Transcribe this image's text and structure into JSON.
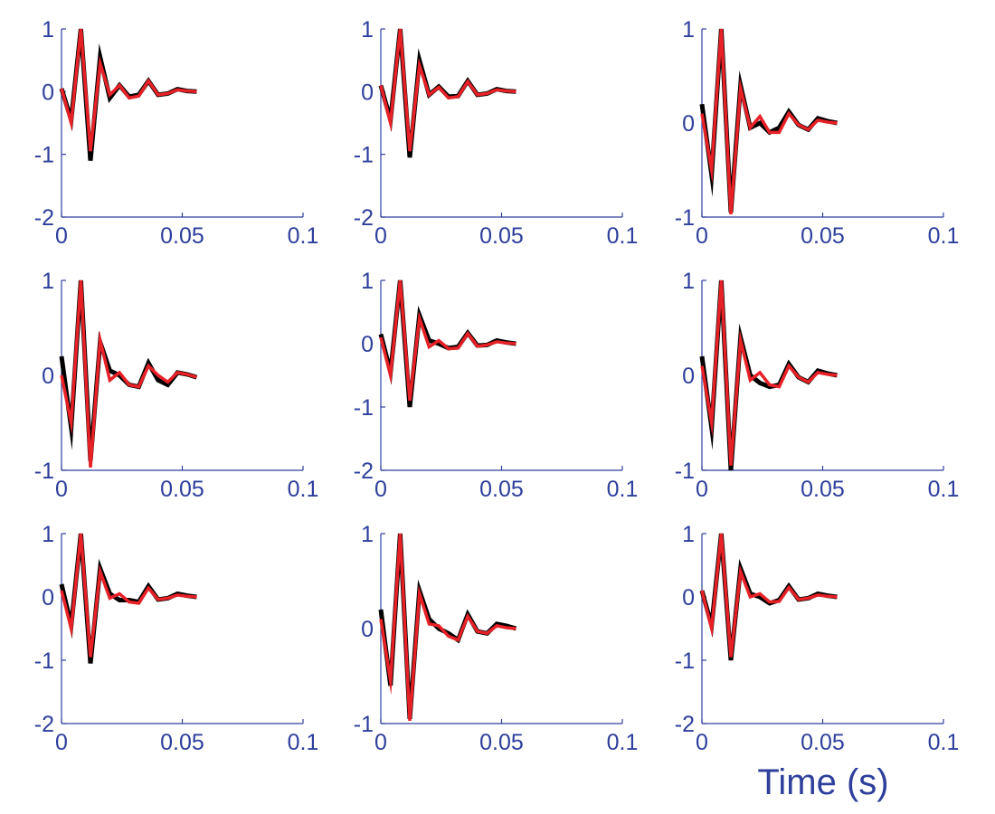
{
  "figure": {
    "axis_color": "#2e3f9c",
    "xlabel": "Time (s)"
  },
  "chart_data": [
    {
      "type": "line",
      "panel": "row1-col1",
      "xlim": [
        0,
        0.1
      ],
      "ylim": [
        -2,
        1
      ],
      "xticks": [
        0,
        0.05,
        0.1
      ],
      "xtick_labels": [
        "0",
        "0.05",
        "0.1"
      ],
      "yticks": [
        -2,
        -1,
        0,
        1
      ],
      "ytick_labels": [
        "-2",
        "-1",
        "0",
        "1"
      ],
      "series": [
        {
          "color": "#000000",
          "x": [
            0,
            0.004,
            0.008,
            0.012,
            0.016,
            0.02,
            0.024,
            0.028,
            0.032,
            0.036,
            0.04,
            0.044,
            0.048,
            0.052,
            0.056
          ],
          "y": [
            0.05,
            -0.45,
            1.0,
            -1.1,
            0.55,
            -0.1,
            0.1,
            -0.08,
            -0.05,
            0.17,
            -0.05,
            -0.03,
            0.04,
            0.01,
            0.0
          ]
        },
        {
          "color": "#e82127",
          "x": [
            0,
            0.004,
            0.008,
            0.012,
            0.016,
            0.02,
            0.024,
            0.028,
            0.032,
            0.036,
            0.04,
            0.044,
            0.048,
            0.052,
            0.056
          ],
          "y": [
            0.05,
            -0.5,
            1.0,
            -0.95,
            0.45,
            -0.05,
            0.1,
            -0.1,
            -0.07,
            0.17,
            -0.05,
            -0.03,
            0.03,
            0.01,
            0.0
          ]
        }
      ]
    },
    {
      "type": "line",
      "panel": "row1-col2",
      "xlim": [
        0,
        0.1
      ],
      "ylim": [
        -2,
        1
      ],
      "xticks": [
        0,
        0.05,
        0.1
      ],
      "xtick_labels": [
        "0",
        "0.05",
        "0.1"
      ],
      "yticks": [
        -2,
        -1,
        0,
        1
      ],
      "ytick_labels": [
        "-2",
        "-1",
        "0",
        "1"
      ],
      "series": [
        {
          "color": "#000000",
          "x": [
            0,
            0.004,
            0.008,
            0.012,
            0.016,
            0.02,
            0.024,
            0.028,
            0.032,
            0.036,
            0.04,
            0.044,
            0.048,
            0.052,
            0.056
          ],
          "y": [
            0.1,
            -0.45,
            1.0,
            -1.05,
            0.5,
            -0.05,
            0.08,
            -0.08,
            -0.07,
            0.17,
            -0.05,
            -0.03,
            0.04,
            0.01,
            0.0
          ]
        },
        {
          "color": "#e82127",
          "x": [
            0,
            0.004,
            0.008,
            0.012,
            0.016,
            0.02,
            0.024,
            0.028,
            0.032,
            0.036,
            0.04,
            0.044,
            0.048,
            0.052,
            0.056
          ],
          "y": [
            0.1,
            -0.5,
            1.0,
            -0.95,
            0.42,
            -0.05,
            0.07,
            -0.1,
            -0.08,
            0.16,
            -0.05,
            -0.03,
            0.03,
            0.01,
            0.0
          ]
        }
      ]
    },
    {
      "type": "line",
      "panel": "row1-col3",
      "xlim": [
        0,
        0.1
      ],
      "ylim": [
        -1,
        1
      ],
      "xticks": [
        0,
        0.05,
        0.1
      ],
      "xtick_labels": [
        "0",
        "0.05",
        "0.1"
      ],
      "yticks": [
        -1,
        0,
        1
      ],
      "ytick_labels": [
        "-1",
        "0",
        "1"
      ],
      "series": [
        {
          "color": "#000000",
          "x": [
            0,
            0.004,
            0.008,
            0.012,
            0.016,
            0.02,
            0.024,
            0.028,
            0.032,
            0.036,
            0.04,
            0.044,
            0.048,
            0.052,
            0.056
          ],
          "y": [
            0.2,
            -0.55,
            1.0,
            -0.95,
            0.4,
            -0.05,
            0.0,
            -0.1,
            -0.05,
            0.12,
            -0.02,
            -0.07,
            0.05,
            0.02,
            0.0
          ]
        },
        {
          "color": "#e82127",
          "x": [
            0,
            0.004,
            0.008,
            0.012,
            0.016,
            0.02,
            0.024,
            0.028,
            0.032,
            0.036,
            0.04,
            0.044,
            0.048,
            0.052,
            0.056
          ],
          "y": [
            0.1,
            -0.5,
            1.0,
            -0.97,
            0.37,
            -0.05,
            0.07,
            -0.1,
            -0.1,
            0.1,
            -0.02,
            -0.07,
            0.03,
            0.01,
            0.0
          ]
        }
      ]
    },
    {
      "type": "line",
      "panel": "row2-col1",
      "xlim": [
        0,
        0.1
      ],
      "ylim": [
        -1,
        1
      ],
      "xticks": [
        0,
        0.05,
        0.1
      ],
      "xtick_labels": [
        "0",
        "0.05",
        "0.1"
      ],
      "yticks": [
        -1,
        0,
        1
      ],
      "ytick_labels": [
        "-1",
        "0",
        "1"
      ],
      "series": [
        {
          "color": "#000000",
          "x": [
            0,
            0.004,
            0.008,
            0.012,
            0.016,
            0.02,
            0.024,
            0.028,
            0.032,
            0.036,
            0.04,
            0.044,
            0.048,
            0.052,
            0.056
          ],
          "y": [
            0.2,
            -0.55,
            1.0,
            -0.9,
            0.35,
            0.05,
            0.0,
            -0.1,
            -0.12,
            0.13,
            -0.05,
            -0.1,
            0.03,
            0.01,
            -0.02
          ]
        },
        {
          "color": "#e82127",
          "x": [
            0,
            0.004,
            0.008,
            0.012,
            0.016,
            0.02,
            0.024,
            0.028,
            0.032,
            0.036,
            0.04,
            0.044,
            0.048,
            0.052,
            0.056
          ],
          "y": [
            0.0,
            -0.5,
            1.0,
            -0.97,
            0.37,
            -0.05,
            0.03,
            -0.1,
            -0.12,
            0.1,
            0.0,
            -0.07,
            0.03,
            0.01,
            -0.02
          ]
        }
      ]
    },
    {
      "type": "line",
      "panel": "row2-col2",
      "xlim": [
        0,
        0.1
      ],
      "ylim": [
        -2,
        1
      ],
      "xticks": [
        0,
        0.05,
        0.1
      ],
      "xtick_labels": [
        "0",
        "0.05",
        "0.1"
      ],
      "yticks": [
        -2,
        -1,
        0,
        1
      ],
      "ytick_labels": [
        "-2",
        "-1",
        "0",
        "1"
      ],
      "series": [
        {
          "color": "#000000",
          "x": [
            0,
            0.004,
            0.008,
            0.012,
            0.016,
            0.02,
            0.024,
            0.028,
            0.032,
            0.036,
            0.04,
            0.044,
            0.048,
            0.052,
            0.056
          ],
          "y": [
            0.15,
            -0.45,
            1.0,
            -1.0,
            0.45,
            0.05,
            0.0,
            -0.07,
            -0.05,
            0.17,
            -0.03,
            -0.02,
            0.05,
            0.02,
            0.0
          ]
        },
        {
          "color": "#e82127",
          "x": [
            0,
            0.004,
            0.008,
            0.012,
            0.016,
            0.02,
            0.024,
            0.028,
            0.032,
            0.036,
            0.04,
            0.044,
            0.048,
            0.052,
            0.056
          ],
          "y": [
            0.1,
            -0.5,
            1.0,
            -0.9,
            0.4,
            -0.05,
            0.05,
            -0.08,
            -0.07,
            0.16,
            -0.04,
            -0.02,
            0.03,
            0.01,
            0.0
          ]
        }
      ]
    },
    {
      "type": "line",
      "panel": "row2-col3",
      "xlim": [
        0,
        0.1
      ],
      "ylim": [
        -1,
        1
      ],
      "xticks": [
        0,
        0.05,
        0.1
      ],
      "xtick_labels": [
        "0",
        "0.05",
        "0.1"
      ],
      "yticks": [
        -1,
        0,
        1
      ],
      "ytick_labels": [
        "-1",
        "0",
        "1"
      ],
      "series": [
        {
          "color": "#000000",
          "x": [
            0,
            0.004,
            0.008,
            0.012,
            0.016,
            0.02,
            0.024,
            0.028,
            0.032,
            0.036,
            0.04,
            0.044,
            0.048,
            0.052,
            0.056
          ],
          "y": [
            0.2,
            -0.55,
            1.0,
            -1.0,
            0.4,
            0.0,
            -0.08,
            -0.12,
            -0.1,
            0.12,
            -0.02,
            -0.07,
            0.05,
            0.02,
            0.0
          ]
        },
        {
          "color": "#e82127",
          "x": [
            0,
            0.004,
            0.008,
            0.012,
            0.016,
            0.02,
            0.024,
            0.028,
            0.032,
            0.036,
            0.04,
            0.044,
            0.048,
            0.052,
            0.056
          ],
          "y": [
            0.1,
            -0.5,
            1.0,
            -0.95,
            0.37,
            -0.05,
            0.03,
            -0.1,
            -0.12,
            0.1,
            -0.02,
            -0.07,
            0.03,
            0.01,
            0.0
          ]
        }
      ]
    },
    {
      "type": "line",
      "panel": "row3-col1",
      "xlim": [
        0,
        0.1
      ],
      "ylim": [
        -2,
        1
      ],
      "xticks": [
        0,
        0.05,
        0.1
      ],
      "xtick_labels": [
        "0",
        "0.05",
        "0.1"
      ],
      "yticks": [
        -2,
        -1,
        0,
        1
      ],
      "ytick_labels": [
        "-2",
        "-1",
        "0",
        "1"
      ],
      "series": [
        {
          "color": "#000000",
          "x": [
            0,
            0.004,
            0.008,
            0.012,
            0.016,
            0.02,
            0.024,
            0.028,
            0.032,
            0.036,
            0.04,
            0.044,
            0.048,
            0.052,
            0.056
          ],
          "y": [
            0.2,
            -0.45,
            1.0,
            -1.05,
            0.45,
            0.05,
            -0.05,
            -0.05,
            -0.08,
            0.17,
            -0.04,
            -0.02,
            0.05,
            0.02,
            0.0
          ]
        },
        {
          "color": "#e82127",
          "x": [
            0,
            0.004,
            0.008,
            0.012,
            0.016,
            0.02,
            0.024,
            0.028,
            0.032,
            0.036,
            0.04,
            0.044,
            0.048,
            0.052,
            0.056
          ],
          "y": [
            0.1,
            -0.5,
            1.0,
            -0.95,
            0.4,
            -0.02,
            0.05,
            -0.08,
            -0.1,
            0.14,
            -0.04,
            -0.02,
            0.03,
            0.01,
            0.0
          ]
        }
      ]
    },
    {
      "type": "line",
      "panel": "row3-col2",
      "xlim": [
        0,
        0.1
      ],
      "ylim": [
        -1,
        1
      ],
      "xticks": [
        0,
        0.05,
        0.1
      ],
      "xtick_labels": [
        "0",
        "0.05",
        "0.1"
      ],
      "yticks": [
        -1,
        0,
        1
      ],
      "ytick_labels": [
        "-1",
        "0",
        "1"
      ],
      "series": [
        {
          "color": "#000000",
          "x": [
            0,
            0.004,
            0.008,
            0.012,
            0.016,
            0.02,
            0.024,
            0.028,
            0.032,
            0.036,
            0.04,
            0.044,
            0.048,
            0.052,
            0.056
          ],
          "y": [
            0.2,
            -0.6,
            1.0,
            -0.95,
            0.4,
            0.1,
            0.0,
            -0.05,
            -0.12,
            0.15,
            -0.03,
            -0.05,
            0.05,
            0.03,
            0.0
          ]
        },
        {
          "color": "#e82127",
          "x": [
            0,
            0.004,
            0.008,
            0.012,
            0.016,
            0.02,
            0.024,
            0.028,
            0.032,
            0.036,
            0.04,
            0.044,
            0.048,
            0.052,
            0.056
          ],
          "y": [
            0.1,
            -0.55,
            1.0,
            -0.97,
            0.37,
            0.05,
            0.03,
            -0.08,
            -0.12,
            0.13,
            -0.03,
            -0.05,
            0.03,
            0.01,
            0.0
          ]
        }
      ]
    },
    {
      "type": "line",
      "panel": "row3-col3",
      "xlim": [
        0,
        0.1
      ],
      "ylim": [
        -2,
        1
      ],
      "xticks": [
        0,
        0.05,
        0.1
      ],
      "xtick_labels": [
        "0",
        "0.05",
        "0.1"
      ],
      "yticks": [
        -2,
        -1,
        0,
        1
      ],
      "ytick_labels": [
        "-2",
        "-1",
        "0",
        "1"
      ],
      "series": [
        {
          "color": "#000000",
          "x": [
            0,
            0.004,
            0.008,
            0.012,
            0.016,
            0.02,
            0.024,
            0.028,
            0.032,
            0.036,
            0.04,
            0.044,
            0.048,
            0.052,
            0.056
          ],
          "y": [
            0.1,
            -0.45,
            1.0,
            -1.0,
            0.45,
            0.05,
            0.0,
            -0.1,
            -0.05,
            0.17,
            -0.04,
            -0.02,
            0.05,
            0.02,
            0.0
          ]
        },
        {
          "color": "#e82127",
          "x": [
            0,
            0.004,
            0.008,
            0.012,
            0.016,
            0.02,
            0.024,
            0.028,
            0.032,
            0.036,
            0.04,
            0.044,
            0.048,
            0.052,
            0.056
          ],
          "y": [
            0.1,
            -0.5,
            1.0,
            -0.95,
            0.4,
            0.0,
            0.05,
            -0.08,
            -0.07,
            0.15,
            -0.04,
            -0.02,
            0.03,
            0.01,
            0.0
          ]
        }
      ]
    }
  ]
}
